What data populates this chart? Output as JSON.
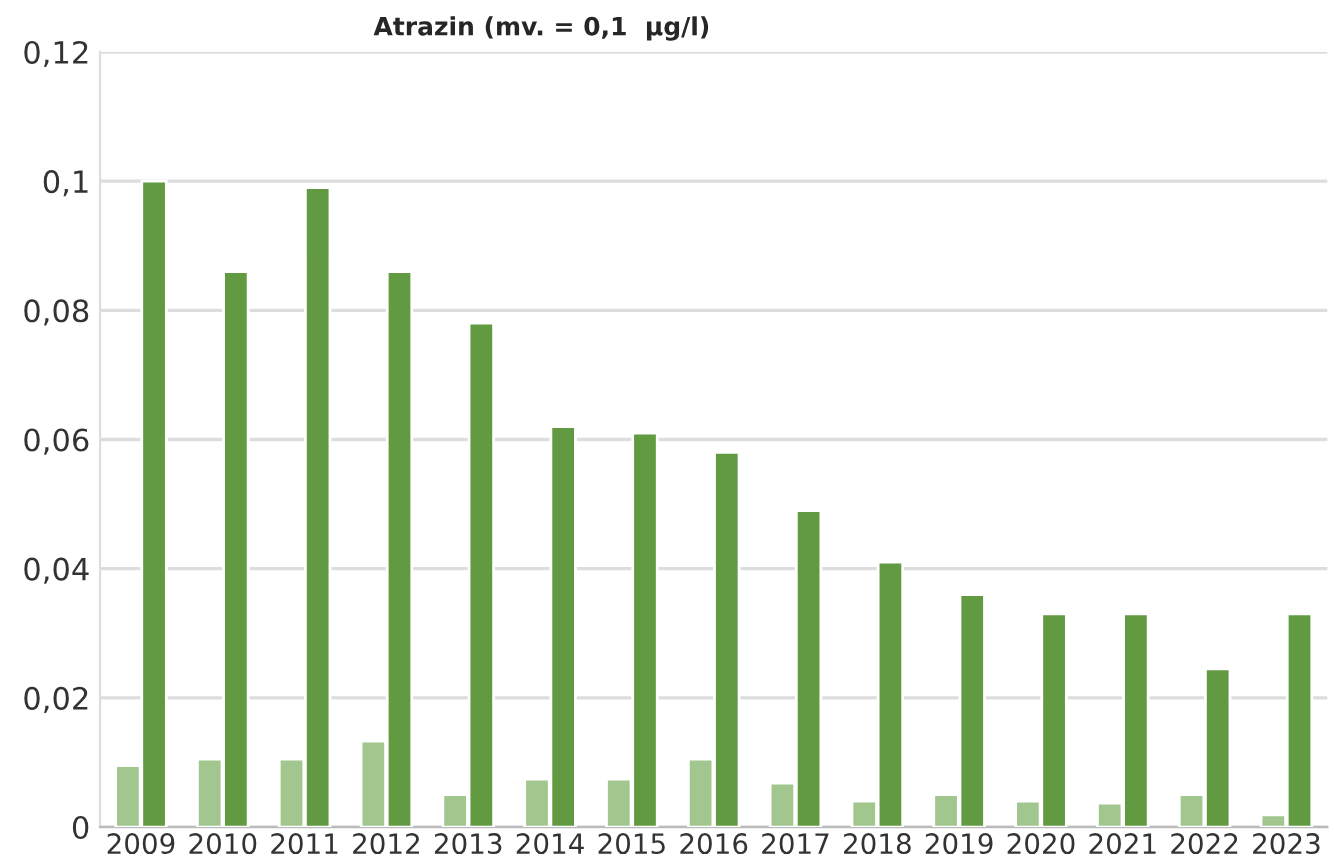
{
  "chart_data": {
    "type": "bar",
    "title": "Atrazin (mv. = 0,1  µg/l)",
    "categories": [
      "2009",
      "2010",
      "2011",
      "2012",
      "2013",
      "2014",
      "2015",
      "2016",
      "2017",
      "2018",
      "2019",
      "2020",
      "2021",
      "2022",
      "2023"
    ],
    "series": [
      {
        "color": "#a1c68e",
        "values": [
          0.0095,
          0.0105,
          0.0105,
          0.0133,
          0.005,
          0.0074,
          0.0074,
          0.0105,
          0.0068,
          0.004,
          0.005,
          0.004,
          0.0037,
          0.005,
          0.0019
        ]
      },
      {
        "color": "#619a41",
        "values": [
          0.1,
          0.086,
          0.099,
          0.086,
          0.078,
          0.062,
          0.061,
          0.058,
          0.049,
          0.041,
          0.036,
          0.033,
          0.033,
          0.0245,
          0.033
        ]
      }
    ],
    "ylim": [
      0,
      0.12
    ],
    "yticks": [
      {
        "value": 0,
        "label": "0"
      },
      {
        "value": 0.02,
        "label": "0,02"
      },
      {
        "value": 0.04,
        "label": "0,04"
      },
      {
        "value": 0.06,
        "label": "0,06"
      },
      {
        "value": 0.08,
        "label": "0,08"
      },
      {
        "value": 0.1,
        "label": "0,1"
      },
      {
        "value": 0.12,
        "label": "0,12"
      }
    ],
    "grid": "y"
  }
}
